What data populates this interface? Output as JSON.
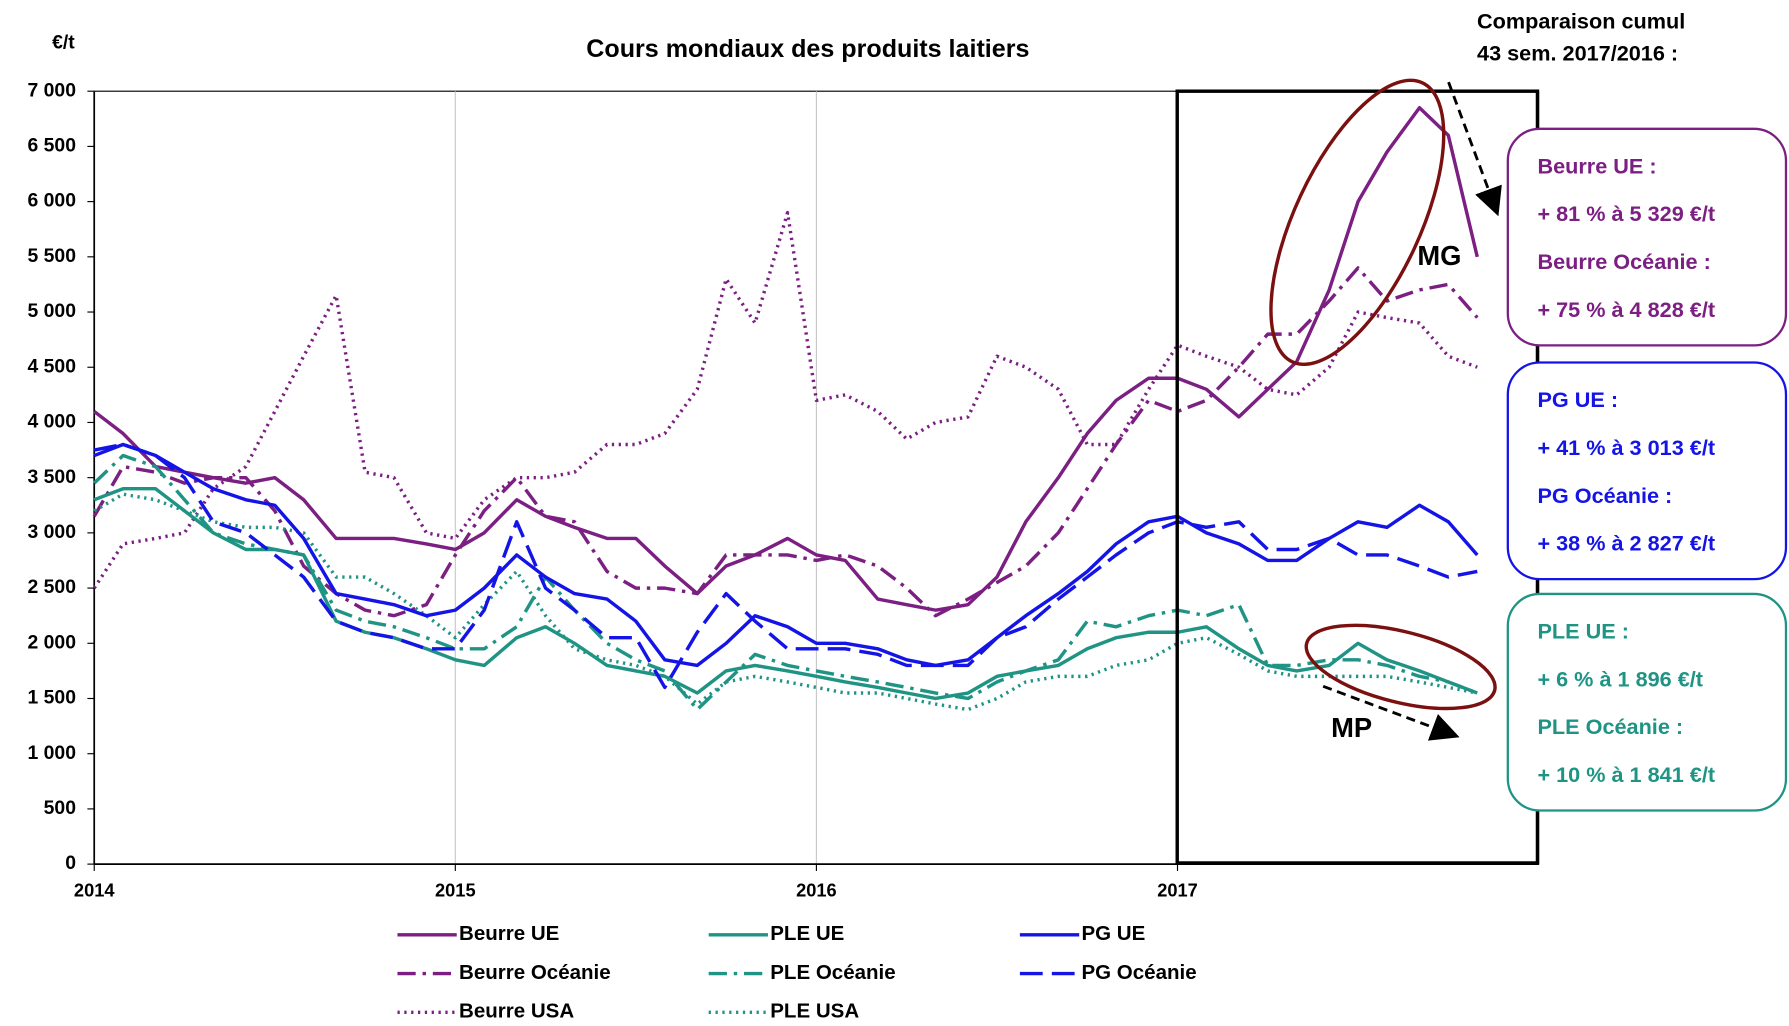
{
  "chart_data": {
    "type": "line",
    "title": "Cours mondiaux des produits laitiers",
    "y_unit": "€/t",
    "x": [
      2014,
      2014.08,
      2014.17,
      2014.25,
      2014.33,
      2014.42,
      2014.5,
      2014.58,
      2014.67,
      2014.75,
      2014.83,
      2014.92,
      2015,
      2015.08,
      2015.17,
      2015.25,
      2015.33,
      2015.42,
      2015.5,
      2015.58,
      2015.67,
      2015.75,
      2015.83,
      2015.92,
      2016,
      2016.08,
      2016.17,
      2016.25,
      2016.33,
      2016.42,
      2016.5,
      2016.58,
      2016.67,
      2016.75,
      2016.83,
      2016.92,
      2017,
      2017.08,
      2017.17,
      2017.25,
      2017.33,
      2017.42,
      2017.5,
      2017.58,
      2017.67,
      2017.75,
      2017.83
    ],
    "xlim": [
      2014,
      2018
    ],
    "xticks": [
      2014,
      2015,
      2016,
      2017
    ],
    "ylim": [
      0,
      7000
    ],
    "yticks": [
      0,
      500,
      {
        "value": 1000,
        "label": "1 000"
      },
      {
        "value": 1500,
        "label": "1 500"
      },
      {
        "value": 2000,
        "label": "2 000"
      },
      {
        "value": 2500,
        "label": "2 500"
      },
      {
        "value": 3000,
        "label": "3 000"
      },
      {
        "value": 3500,
        "label": "3 500"
      },
      {
        "value": 4000,
        "label": "4 000"
      },
      {
        "value": 4500,
        "label": "4 500"
      },
      {
        "value": 5000,
        "label": "5 000"
      },
      {
        "value": 5500,
        "label": "5 500"
      },
      {
        "value": 6000,
        "label": "6 000"
      },
      {
        "value": 6500,
        "label": "6 500"
      },
      {
        "value": 7000,
        "label": "7 000"
      }
    ],
    "grid": "x",
    "series": [
      {
        "name": "Beurre UE",
        "color": "#7b1f82",
        "dash": "solid",
        "values": [
          4100,
          3900,
          3600,
          3550,
          3500,
          3450,
          3500,
          3300,
          2950,
          2950,
          2950,
          2900,
          2850,
          3000,
          3300,
          3150,
          3050,
          2950,
          2950,
          2700,
          2450,
          2700,
          2800,
          2950,
          2800,
          2750,
          2400,
          2350,
          2300,
          2350,
          2600,
          3100,
          3500,
          3900,
          4200,
          4400,
          4400,
          4300,
          4050,
          4300,
          4550,
          5200,
          6000,
          6450,
          6850,
          6600,
          5500
        ]
      },
      {
        "name": "Beurre Océanie",
        "color": "#7b1f82",
        "dash": "dashdot",
        "values": [
          3150,
          3600,
          3550,
          3450,
          3500,
          3500,
          3200,
          2700,
          2450,
          2300,
          2250,
          2350,
          2800,
          3200,
          3500,
          3150,
          3100,
          2650,
          2500,
          2500,
          2450,
          2800,
          2800,
          2800,
          2750,
          2800,
          2700,
          2500,
          2250,
          2400,
          2550,
          2700,
          3000,
          3400,
          3800,
          4200,
          4100,
          4200,
          4500,
          4800,
          4800,
          5100,
          5400,
          5100,
          5200,
          5250,
          4950
        ]
      },
      {
        "name": "Beurre USA",
        "color": "#7b1f82",
        "dash": "dotted",
        "values": [
          2500,
          2900,
          2950,
          3000,
          3400,
          3600,
          4100,
          4600,
          5150,
          3550,
          3500,
          3000,
          2950,
          3300,
          3500,
          3500,
          3550,
          3800,
          3800,
          3900,
          4300,
          5300,
          4900,
          5900,
          4200,
          4250,
          4100,
          3850,
          4000,
          4050,
          4600,
          4500,
          4300,
          3800,
          3800,
          4300,
          4700,
          4600,
          4500,
          4300,
          4250,
          4500,
          5000,
          4950,
          4900,
          4600,
          4500
        ]
      },
      {
        "name": "PLE UE",
        "color": "#1f9484",
        "dash": "solid",
        "values": [
          3300,
          3400,
          3400,
          3200,
          3000,
          2850,
          2850,
          2800,
          2200,
          2100,
          2050,
          1950,
          1850,
          1800,
          2050,
          2150,
          2000,
          1800,
          1750,
          1700,
          1550,
          1750,
          1800,
          1750,
          1700,
          1650,
          1600,
          1550,
          1500,
          1550,
          1700,
          1750,
          1800,
          1950,
          2050,
          2100,
          2100,
          2150,
          1950,
          1800,
          1750,
          1800,
          2000,
          1850,
          1750,
          1650,
          1550
        ]
      },
      {
        "name": "PLE Océanie",
        "color": "#1f9484",
        "dash": "dashdot",
        "values": [
          3450,
          3700,
          3600,
          3300,
          3000,
          2900,
          2850,
          2800,
          2300,
          2200,
          2150,
          2050,
          1950,
          1950,
          2150,
          2600,
          2300,
          2000,
          1850,
          1750,
          1400,
          1650,
          1900,
          1800,
          1750,
          1700,
          1650,
          1600,
          1550,
          1500,
          1650,
          1750,
          1850,
          2200,
          2150,
          2250,
          2300,
          2250,
          2350,
          1800,
          1800,
          1850,
          1850,
          1800,
          1700,
          1650,
          1550
        ]
      },
      {
        "name": "PLE USA",
        "color": "#1f9484",
        "dash": "dotted",
        "values": [
          3200,
          3350,
          3300,
          3200,
          3100,
          3050,
          3050,
          3000,
          2600,
          2600,
          2450,
          2250,
          2050,
          2350,
          2650,
          2250,
          1950,
          1850,
          1800,
          1700,
          1450,
          1650,
          1700,
          1650,
          1600,
          1550,
          1550,
          1500,
          1450,
          1400,
          1500,
          1650,
          1700,
          1700,
          1800,
          1850,
          2000,
          2050,
          1900,
          1750,
          1700,
          1700,
          1700,
          1700,
          1650,
          1600,
          1550
        ]
      },
      {
        "name": "PG UE",
        "color": "#1414e6",
        "dash": "solid",
        "values": [
          3700,
          3800,
          3700,
          3550,
          3400,
          3300,
          3250,
          2950,
          2450,
          2400,
          2350,
          2250,
          2300,
          2500,
          2800,
          2600,
          2450,
          2400,
          2200,
          1850,
          1800,
          2000,
          2250,
          2150,
          2000,
          2000,
          1950,
          1850,
          1800,
          1850,
          2050,
          2250,
          2450,
          2650,
          2900,
          3100,
          3150,
          3000,
          2900,
          2750,
          2750,
          2950,
          3100,
          3050,
          3250,
          3100,
          2800
        ]
      },
      {
        "name": "PG Océanie",
        "color": "#1414e6",
        "dash": "dashed",
        "values": [
          3750,
          3800,
          3700,
          3500,
          3100,
          3000,
          2800,
          2600,
          2200,
          2100,
          2050,
          1950,
          1950,
          2300,
          3100,
          2500,
          2300,
          2050,
          2050,
          1600,
          2100,
          2450,
          2200,
          1950,
          1950,
          1950,
          1900,
          1800,
          1800,
          1800,
          2050,
          2150,
          2400,
          2600,
          2800,
          3000,
          3100,
          3050,
          3100,
          2850,
          2850,
          2950,
          2800,
          2800,
          2700,
          2600,
          2650
        ]
      }
    ],
    "comparison_title": [
      "Comparaison cumul",
      "43 sem. 2017/2016 :"
    ],
    "comparison_boxes": [
      {
        "color": "#7b1f82",
        "lines": [
          "Beurre UE :",
          "+ 81 % à 5 329 €/t",
          "Beurre Océanie :",
          "+ 75 % à 4 828 €/t"
        ]
      },
      {
        "color": "#1414e6",
        "lines": [
          "PG UE :",
          "+ 41 % à 3 013 €/t",
          "PG Océanie :",
          "+ 38 % à 2 827 €/t"
        ]
      },
      {
        "color": "#1f9484",
        "lines": [
          "PLE UE :",
          "+ 6 % à 1 896 €/t",
          "PLE Océanie :",
          "+ 10 % à 1 841 €/t"
        ]
      }
    ],
    "annotations": [
      "MG",
      "MP"
    ]
  }
}
